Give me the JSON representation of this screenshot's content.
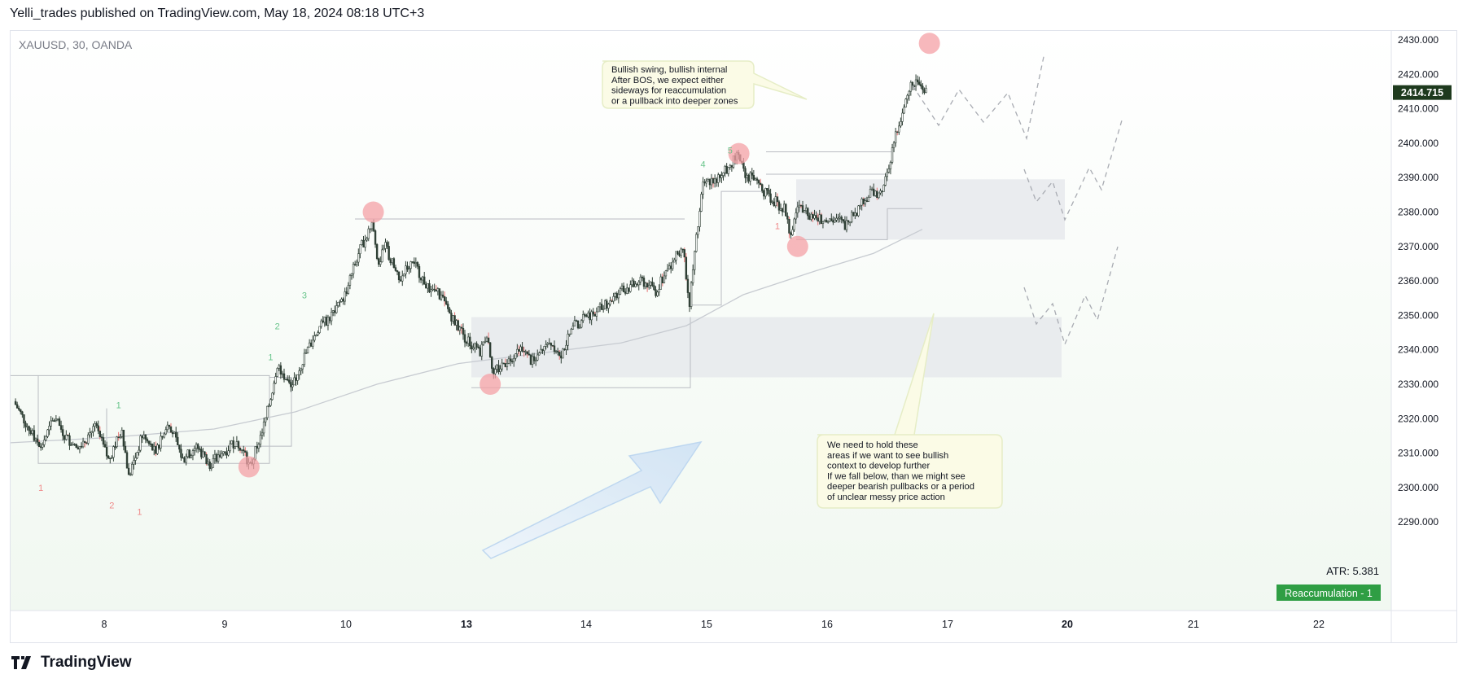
{
  "header": {
    "publish_line": "Yelli_trades published on TradingView.com, May 18, 2024 08:18 UTC+3"
  },
  "footer": {
    "brand": "TradingView"
  },
  "colors": {
    "bull_candle": "#2f3f35",
    "bear_candle": "#2f3f35",
    "wick_red": "#e57373",
    "last_price_bg": "#1e3a1e",
    "badge_bg": "#2f9e44",
    "marker": "#f4a0a6",
    "zone_fill": "#e9ecef",
    "callout_bg": "#fbfbe6",
    "arrow_fill": "#d9e8f7"
  },
  "chart_data": {
    "type": "candlestick",
    "symbol_label": "XAUUSD, 30, OANDA",
    "ylim": [
      2285,
      2432
    ],
    "y_ticks": [
      "2430.000",
      "2420.000",
      "2410.000",
      "2400.000",
      "2390.000",
      "2380.000",
      "2370.000",
      "2360.000",
      "2350.000",
      "2340.000",
      "2330.000",
      "2320.000",
      "2310.000",
      "2300.000",
      "2290.000"
    ],
    "x_ticks": [
      {
        "label": "8",
        "bold": false
      },
      {
        "label": "9",
        "bold": false
      },
      {
        "label": "10",
        "bold": false
      },
      {
        "label": "13",
        "bold": true
      },
      {
        "label": "14",
        "bold": false
      },
      {
        "label": "15",
        "bold": false
      },
      {
        "label": "16",
        "bold": false
      },
      {
        "label": "17",
        "bold": false
      },
      {
        "label": "20",
        "bold": true
      },
      {
        "label": "21",
        "bold": false
      },
      {
        "label": "22",
        "bold": false
      }
    ],
    "last_price": "2414.715",
    "atr_label": "ATR: 5.381",
    "badge": "Reaccumulation - 1",
    "price_path": [
      [
        0,
        2325
      ],
      [
        2,
        2318
      ],
      [
        4,
        2312
      ],
      [
        6,
        2320
      ],
      [
        8,
        2314
      ],
      [
        10,
        2312
      ],
      [
        12,
        2318
      ],
      [
        14,
        2308
      ],
      [
        16,
        2317
      ],
      [
        17,
        2303
      ],
      [
        19,
        2315
      ],
      [
        21,
        2310
      ],
      [
        23,
        2319
      ],
      [
        25,
        2308
      ],
      [
        27,
        2312
      ],
      [
        29,
        2307
      ],
      [
        31,
        2310
      ],
      [
        33,
        2314
      ],
      [
        35,
        2306
      ],
      [
        37,
        2318
      ],
      [
        38,
        2326
      ],
      [
        39,
        2336
      ],
      [
        41,
        2329
      ],
      [
        43,
        2338
      ],
      [
        45,
        2346
      ],
      [
        47,
        2350
      ],
      [
        49,
        2356
      ],
      [
        51,
        2368
      ],
      [
        53,
        2377
      ],
      [
        54,
        2365
      ],
      [
        55,
        2370
      ],
      [
        57,
        2360
      ],
      [
        59,
        2366
      ],
      [
        61,
        2359
      ],
      [
        63,
        2356
      ],
      [
        65,
        2349
      ],
      [
        67,
        2343
      ],
      [
        69,
        2339
      ],
      [
        70,
        2345
      ],
      [
        71,
        2333
      ],
      [
        73,
        2337
      ],
      [
        75,
        2340
      ],
      [
        77,
        2336
      ],
      [
        79,
        2343
      ],
      [
        81,
        2339
      ],
      [
        83,
        2347
      ],
      [
        85,
        2350
      ],
      [
        87,
        2352
      ],
      [
        89,
        2356
      ],
      [
        91,
        2358
      ],
      [
        93,
        2360
      ],
      [
        95,
        2357
      ],
      [
        97,
        2364
      ],
      [
        99,
        2370
      ],
      [
        100,
        2354
      ],
      [
        101,
        2372
      ],
      [
        102,
        2388
      ],
      [
        104,
        2390
      ],
      [
        106,
        2393
      ],
      [
        107,
        2397
      ],
      [
        108,
        2392
      ],
      [
        110,
        2388
      ],
      [
        112,
        2384
      ],
      [
        114,
        2381
      ],
      [
        115,
        2373
      ],
      [
        116,
        2382
      ],
      [
        118,
        2379
      ],
      [
        120,
        2377
      ],
      [
        122,
        2378
      ],
      [
        123,
        2376
      ],
      [
        125,
        2381
      ],
      [
        127,
        2386
      ],
      [
        128,
        2384
      ],
      [
        129,
        2390
      ],
      [
        130,
        2398
      ],
      [
        131,
        2406
      ],
      [
        132,
        2412
      ],
      [
        133,
        2418
      ],
      [
        134,
        2417
      ],
      [
        135,
        2415
      ]
    ],
    "swing_markers": [
      {
        "t": 34.8,
        "p": 2306
      },
      {
        "t": 53.2,
        "p": 2380
      },
      {
        "t": 70.5,
        "p": 2330
      },
      {
        "t": 107.3,
        "p": 2397
      },
      {
        "t": 116.0,
        "p": 2370
      },
      {
        "t": 135.5,
        "p": 2429
      }
    ],
    "count_labels": [
      {
        "text": "1",
        "t": 4,
        "p": 2299,
        "color": "red"
      },
      {
        "text": "2",
        "t": 14.5,
        "p": 2294,
        "color": "red"
      },
      {
        "text": "1",
        "t": 18.6,
        "p": 2292,
        "color": "red"
      },
      {
        "text": "1",
        "t": 15.5,
        "p": 2323,
        "color": "green"
      },
      {
        "text": "1",
        "t": 38,
        "p": 2337,
        "color": "green"
      },
      {
        "text": "2",
        "t": 39,
        "p": 2346,
        "color": "green"
      },
      {
        "text": "3",
        "t": 43,
        "p": 2355,
        "color": "green"
      },
      {
        "text": "4",
        "t": 102,
        "p": 2393,
        "color": "green"
      },
      {
        "text": "5",
        "t": 106,
        "p": 2397,
        "color": "green"
      },
      {
        "text": "1",
        "t": 113,
        "p": 2375,
        "color": "red"
      }
    ],
    "annotations": [
      {
        "lines": [
          "Bullish swing, bullish internal",
          "After BOS, we expect either",
          "sideways for reaccumulation",
          "or a pullback into deeper zones"
        ]
      },
      {
        "lines": [
          "We need to hold these",
          "areas if we want to see bullish",
          "context to develop further",
          "If we fall below, than we might see",
          "deeper bearish pullbacks or a period",
          "of unclear messy price action"
        ]
      }
    ]
  }
}
